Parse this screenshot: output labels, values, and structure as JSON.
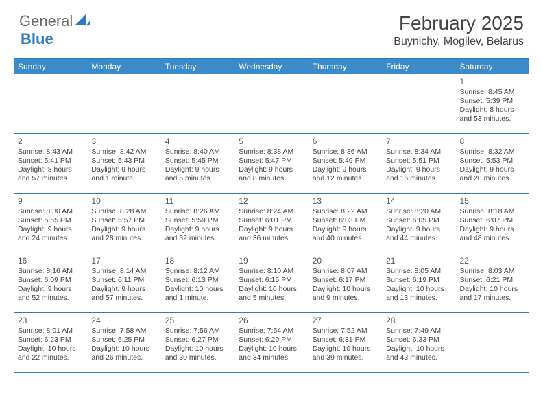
{
  "branding": {
    "word1": "General",
    "word2": "Blue",
    "accent_color": "#2f7bbf",
    "text_color": "#6b6b6b"
  },
  "header": {
    "title": "February 2025",
    "location": "Buynichy, Mogilev, Belarus"
  },
  "calendar": {
    "type": "table",
    "header_bg": "#3b8bc9",
    "border_color": "#2f7bbf",
    "weekdays": [
      "Sunday",
      "Monday",
      "Tuesday",
      "Wednesday",
      "Thursday",
      "Friday",
      "Saturday"
    ],
    "weeks": [
      [
        null,
        null,
        null,
        null,
        null,
        null,
        {
          "day": "1",
          "sunrise": "Sunrise: 8:45 AM",
          "sunset": "Sunset: 5:39 PM",
          "daylight": "Daylight: 8 hours and 53 minutes."
        }
      ],
      [
        {
          "day": "2",
          "sunrise": "Sunrise: 8:43 AM",
          "sunset": "Sunset: 5:41 PM",
          "daylight": "Daylight: 8 hours and 57 minutes."
        },
        {
          "day": "3",
          "sunrise": "Sunrise: 8:42 AM",
          "sunset": "Sunset: 5:43 PM",
          "daylight": "Daylight: 9 hours and 1 minute."
        },
        {
          "day": "4",
          "sunrise": "Sunrise: 8:40 AM",
          "sunset": "Sunset: 5:45 PM",
          "daylight": "Daylight: 9 hours and 5 minutes."
        },
        {
          "day": "5",
          "sunrise": "Sunrise: 8:38 AM",
          "sunset": "Sunset: 5:47 PM",
          "daylight": "Daylight: 9 hours and 8 minutes."
        },
        {
          "day": "6",
          "sunrise": "Sunrise: 8:36 AM",
          "sunset": "Sunset: 5:49 PM",
          "daylight": "Daylight: 9 hours and 12 minutes."
        },
        {
          "day": "7",
          "sunrise": "Sunrise: 8:34 AM",
          "sunset": "Sunset: 5:51 PM",
          "daylight": "Daylight: 9 hours and 16 minutes."
        },
        {
          "day": "8",
          "sunrise": "Sunrise: 8:32 AM",
          "sunset": "Sunset: 5:53 PM",
          "daylight": "Daylight: 9 hours and 20 minutes."
        }
      ],
      [
        {
          "day": "9",
          "sunrise": "Sunrise: 8:30 AM",
          "sunset": "Sunset: 5:55 PM",
          "daylight": "Daylight: 9 hours and 24 minutes."
        },
        {
          "day": "10",
          "sunrise": "Sunrise: 8:28 AM",
          "sunset": "Sunset: 5:57 PM",
          "daylight": "Daylight: 9 hours and 28 minutes."
        },
        {
          "day": "11",
          "sunrise": "Sunrise: 8:26 AM",
          "sunset": "Sunset: 5:59 PM",
          "daylight": "Daylight: 9 hours and 32 minutes."
        },
        {
          "day": "12",
          "sunrise": "Sunrise: 8:24 AM",
          "sunset": "Sunset: 6:01 PM",
          "daylight": "Daylight: 9 hours and 36 minutes."
        },
        {
          "day": "13",
          "sunrise": "Sunrise: 8:22 AM",
          "sunset": "Sunset: 6:03 PM",
          "daylight": "Daylight: 9 hours and 40 minutes."
        },
        {
          "day": "14",
          "sunrise": "Sunrise: 8:20 AM",
          "sunset": "Sunset: 6:05 PM",
          "daylight": "Daylight: 9 hours and 44 minutes."
        },
        {
          "day": "15",
          "sunrise": "Sunrise: 8:18 AM",
          "sunset": "Sunset: 6:07 PM",
          "daylight": "Daylight: 9 hours and 48 minutes."
        }
      ],
      [
        {
          "day": "16",
          "sunrise": "Sunrise: 8:16 AM",
          "sunset": "Sunset: 6:09 PM",
          "daylight": "Daylight: 9 hours and 52 minutes."
        },
        {
          "day": "17",
          "sunrise": "Sunrise: 8:14 AM",
          "sunset": "Sunset: 6:11 PM",
          "daylight": "Daylight: 9 hours and 57 minutes."
        },
        {
          "day": "18",
          "sunrise": "Sunrise: 8:12 AM",
          "sunset": "Sunset: 6:13 PM",
          "daylight": "Daylight: 10 hours and 1 minute."
        },
        {
          "day": "19",
          "sunrise": "Sunrise: 8:10 AM",
          "sunset": "Sunset: 6:15 PM",
          "daylight": "Daylight: 10 hours and 5 minutes."
        },
        {
          "day": "20",
          "sunrise": "Sunrise: 8:07 AM",
          "sunset": "Sunset: 6:17 PM",
          "daylight": "Daylight: 10 hours and 9 minutes."
        },
        {
          "day": "21",
          "sunrise": "Sunrise: 8:05 AM",
          "sunset": "Sunset: 6:19 PM",
          "daylight": "Daylight: 10 hours and 13 minutes."
        },
        {
          "day": "22",
          "sunrise": "Sunrise: 8:03 AM",
          "sunset": "Sunset: 6:21 PM",
          "daylight": "Daylight: 10 hours and 17 minutes."
        }
      ],
      [
        {
          "day": "23",
          "sunrise": "Sunrise: 8:01 AM",
          "sunset": "Sunset: 6:23 PM",
          "daylight": "Daylight: 10 hours and 22 minutes."
        },
        {
          "day": "24",
          "sunrise": "Sunrise: 7:58 AM",
          "sunset": "Sunset: 6:25 PM",
          "daylight": "Daylight: 10 hours and 26 minutes."
        },
        {
          "day": "25",
          "sunrise": "Sunrise: 7:56 AM",
          "sunset": "Sunset: 6:27 PM",
          "daylight": "Daylight: 10 hours and 30 minutes."
        },
        {
          "day": "26",
          "sunrise": "Sunrise: 7:54 AM",
          "sunset": "Sunset: 6:29 PM",
          "daylight": "Daylight: 10 hours and 34 minutes."
        },
        {
          "day": "27",
          "sunrise": "Sunrise: 7:52 AM",
          "sunset": "Sunset: 6:31 PM",
          "daylight": "Daylight: 10 hours and 39 minutes."
        },
        {
          "day": "28",
          "sunrise": "Sunrise: 7:49 AM",
          "sunset": "Sunset: 6:33 PM",
          "daylight": "Daylight: 10 hours and 43 minutes."
        },
        null
      ]
    ]
  }
}
